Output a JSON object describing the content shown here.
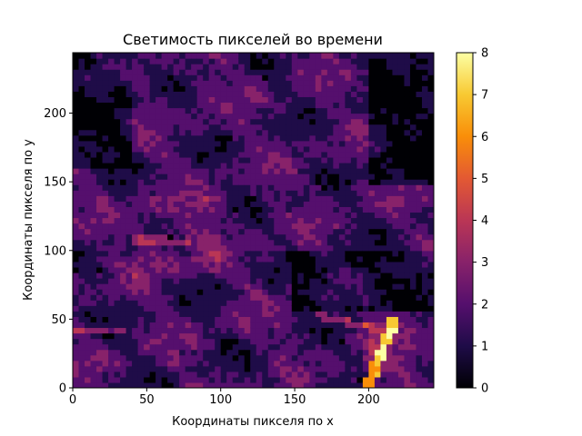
{
  "chart_data": {
    "type": "heatmap",
    "title": "Светимость пикселей во времени",
    "xlabel": "Координаты пикселя по x",
    "ylabel": "Координаты пикселя по y",
    "xlim": [
      0,
      244
    ],
    "ylim": [
      0,
      244
    ],
    "x_ticks": [
      0,
      50,
      100,
      150,
      200
    ],
    "y_ticks": [
      0,
      50,
      100,
      150,
      200
    ],
    "colormap": "inferno",
    "colorbar": {
      "range": [
        0,
        8
      ],
      "ticks": [
        0,
        1,
        2,
        3,
        4,
        5,
        6,
        7,
        8
      ]
    },
    "grid": false,
    "colors": {
      "c0": "#000004",
      "c1": "#1f0c48",
      "c2": "#550f6d",
      "c3": "#88226a",
      "c4": "#ba3655",
      "c5": "#e35933",
      "c6": "#f98e09",
      "c7": "#f8c932",
      "c8": "#fcffa4"
    }
  }
}
